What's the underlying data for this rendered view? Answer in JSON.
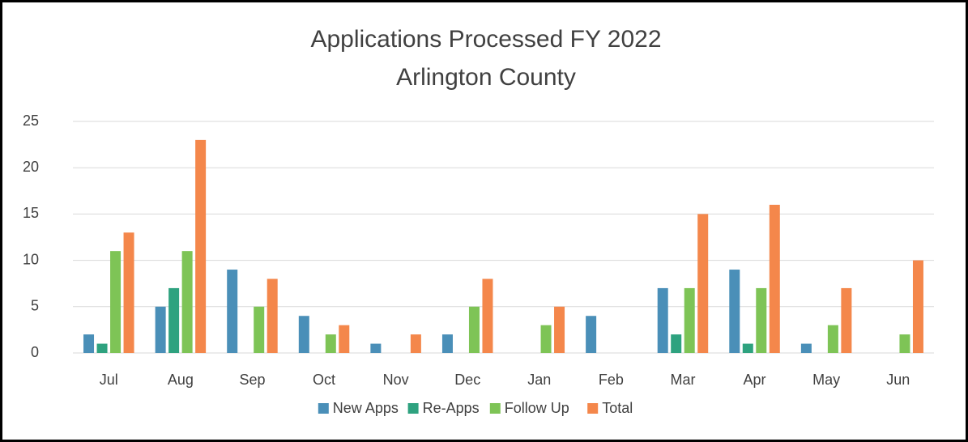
{
  "chart_data": {
    "type": "bar",
    "title": "Applications Processed FY 2022",
    "subtitle": "Arlington County",
    "categories": [
      "Jul",
      "Aug",
      "Sep",
      "Oct",
      "Nov",
      "Dec",
      "Jan",
      "Feb",
      "Mar",
      "Apr",
      "May",
      "Jun"
    ],
    "series": [
      {
        "name": "New Apps",
        "color": "#4a8fb8",
        "values": [
          2,
          5,
          9,
          4,
          1,
          2,
          0,
          4,
          7,
          9,
          1,
          0
        ]
      },
      {
        "name": "Re-Apps",
        "color": "#2ea27f",
        "values": [
          1,
          7,
          0,
          0,
          0,
          0,
          0,
          0,
          2,
          1,
          0,
          0
        ]
      },
      {
        "name": "Follow Up",
        "color": "#7ec456",
        "values": [
          11,
          11,
          5,
          2,
          0,
          5,
          3,
          0,
          7,
          7,
          3,
          2
        ]
      },
      {
        "name": "Total",
        "color": "#f4874b",
        "values": [
          13,
          23,
          8,
          3,
          2,
          8,
          5,
          0,
          15,
          16,
          7,
          10
        ]
      }
    ],
    "ylim": [
      0,
      25
    ],
    "yticks": [
      0,
      5,
      10,
      15,
      20,
      25
    ],
    "grid": true,
    "legend": "bottom"
  }
}
